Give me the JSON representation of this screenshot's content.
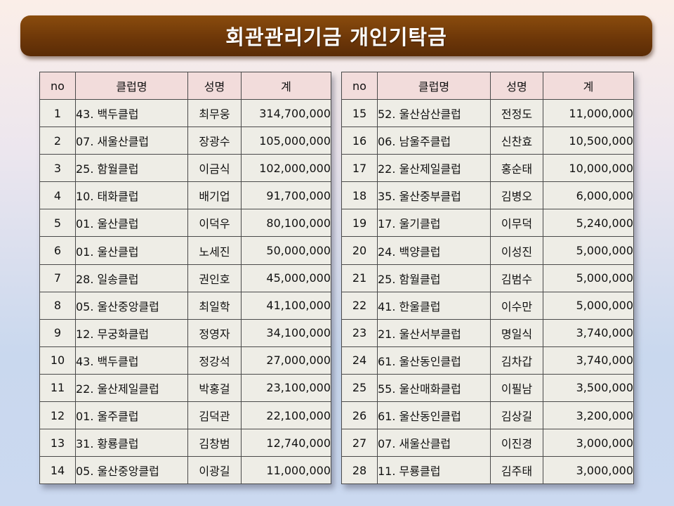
{
  "title": "회관관리기금 개인기탁금",
  "headers": {
    "no": "no",
    "club": "클럽명",
    "name": "성명",
    "amount": "계"
  },
  "left_rows": [
    {
      "no": "1",
      "club": "43. 백두클럽",
      "name": "최무웅",
      "amount": "314,700,000"
    },
    {
      "no": "2",
      "club": "07. 새울산클럽",
      "name": "장광수",
      "amount": "105,000,000"
    },
    {
      "no": "3",
      "club": "25. 함월클럽",
      "name": "이금식",
      "amount": "102,000,000"
    },
    {
      "no": "4",
      "club": "10. 태화클럽",
      "name": "배기업",
      "amount": "91,700,000"
    },
    {
      "no": "5",
      "club": "01. 울산클럽",
      "name": "이덕우",
      "amount": "80,100,000"
    },
    {
      "no": "6",
      "club": "01. 울산클럽",
      "name": "노세진",
      "amount": "50,000,000"
    },
    {
      "no": "7",
      "club": "28. 일송클럽",
      "name": "권인호",
      "amount": "45,000,000"
    },
    {
      "no": "8",
      "club": "05. 울산중앙클럽",
      "name": "최일학",
      "amount": "41,100,000"
    },
    {
      "no": "9",
      "club": "12. 무궁화클럽",
      "name": "정영자",
      "amount": "34,100,000"
    },
    {
      "no": "10",
      "club": "43. 백두클럽",
      "name": "정강석",
      "amount": "27,000,000"
    },
    {
      "no": "11",
      "club": "22. 울산제일클럽",
      "name": "박홍걸",
      "amount": "23,100,000"
    },
    {
      "no": "12",
      "club": "01. 울주클럽",
      "name": "김덕관",
      "amount": "22,100,000"
    },
    {
      "no": "13",
      "club": "31. 황룡클럽",
      "name": "김창범",
      "amount": "12,740,000"
    },
    {
      "no": "14",
      "club": "05. 울산중앙클럽",
      "name": "이광길",
      "amount": "11,000,000"
    }
  ],
  "right_rows": [
    {
      "no": "15",
      "club": "52. 울산삼산클럽",
      "name": "전정도",
      "amount": "11,000,000"
    },
    {
      "no": "16",
      "club": "06. 남울주클럽",
      "name": "신찬효",
      "amount": "10,500,000"
    },
    {
      "no": "17",
      "club": "22. 울산제일클럽",
      "name": "홍순태",
      "amount": "10,000,000"
    },
    {
      "no": "18",
      "club": "35. 울산중부클럽",
      "name": "김병오",
      "amount": "6,000,000"
    },
    {
      "no": "19",
      "club": "17. 울기클럽",
      "name": "이무덕",
      "amount": "5,240,000"
    },
    {
      "no": "20",
      "club": "24. 백양클럽",
      "name": "이성진",
      "amount": "5,000,000"
    },
    {
      "no": "21",
      "club": "25. 함월클럽",
      "name": "김범수",
      "amount": "5,000,000"
    },
    {
      "no": "22",
      "club": "41. 한울클럽",
      "name": "이수만",
      "amount": "5,000,000"
    },
    {
      "no": "23",
      "club": "21. 울산서부클럽",
      "name": "명일식",
      "amount": "3,740,000"
    },
    {
      "no": "24",
      "club": "61. 울산동인클럽",
      "name": "김차갑",
      "amount": "3,740,000"
    },
    {
      "no": "25",
      "club": "55. 울산매화클럽",
      "name": "이필남",
      "amount": "3,500,000"
    },
    {
      "no": "26",
      "club": "61. 울산동인클럽",
      "name": "김상길",
      "amount": "3,200,000"
    },
    {
      "no": "27",
      "club": "07. 새울산클럽",
      "name": "이진경",
      "amount": "3,000,000"
    },
    {
      "no": "28",
      "club": "11. 무룡클럽",
      "name": "김주태",
      "amount": "3,000,000"
    }
  ]
}
